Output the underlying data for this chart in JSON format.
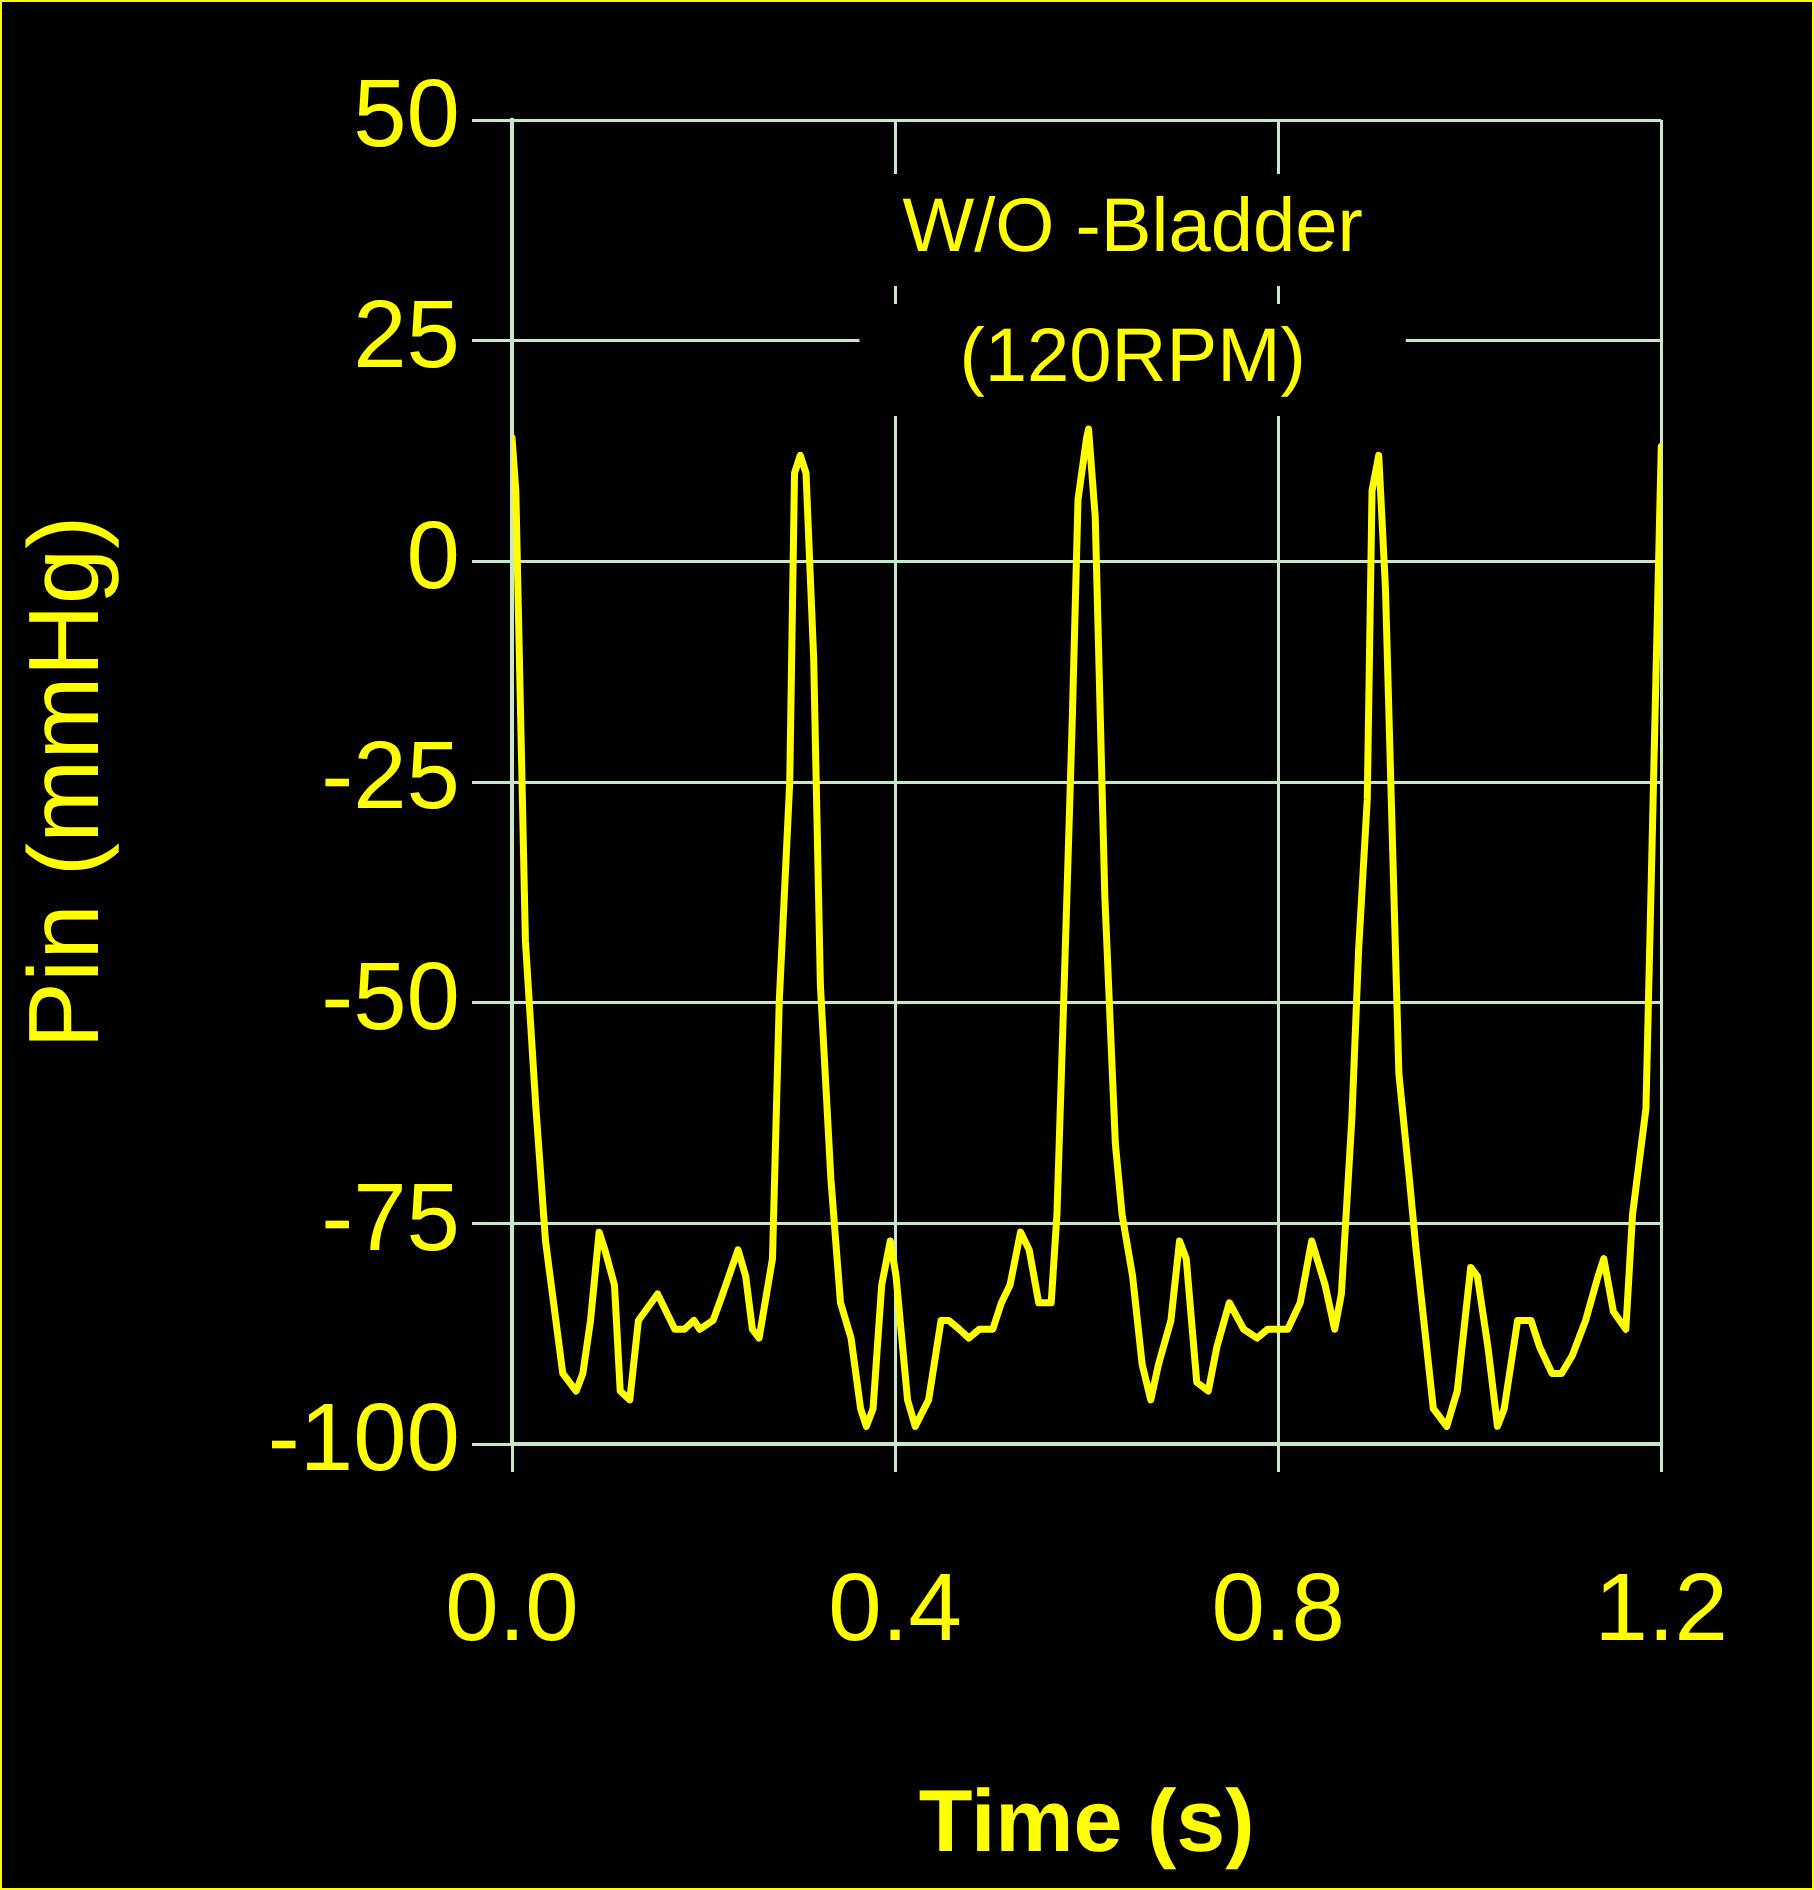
{
  "chart_data": {
    "type": "line",
    "xlabel": "Time (s)",
    "ylabel": "Pin (mmHg)",
    "annotations": [
      "W/O -Bladder",
      "(120RPM)"
    ],
    "xlim": [
      0,
      1.2
    ],
    "xticks": [
      {
        "value": 0,
        "label": "0.0"
      },
      0.4,
      0.8,
      1.2
    ],
    "ylim": [
      -100,
      50
    ],
    "yticks": [
      -100,
      -75,
      -50,
      -25,
      0,
      25,
      50
    ],
    "grid": true,
    "legend": false,
    "marker": "none",
    "line_style": "solid",
    "series": [
      {
        "color": "#ffff00",
        "x": [
          0,
          0.004,
          0.014,
          0.025,
          0.035,
          0.053,
          0.067,
          0.074,
          0.082,
          0.091,
          0.097,
          0.107,
          0.113,
          0.123,
          0.132,
          0.152,
          0.17,
          0.18,
          0.19,
          0.196,
          0.21,
          0.22,
          0.236,
          0.244,
          0.251,
          0.258,
          0.272,
          0.279,
          0.29,
          0.295,
          0.301,
          0.307,
          0.315,
          0.322,
          0.333,
          0.343,
          0.354,
          0.364,
          0.37,
          0.377,
          0.386,
          0.395,
          0.401,
          0.413,
          0.421,
          0.435,
          0.448,
          0.456,
          0.467,
          0.477,
          0.488,
          0.502,
          0.511,
          0.52,
          0.531,
          0.54,
          0.55,
          0.563,
          0.569,
          0.576,
          0.585,
          0.591,
          0.6,
          0.602,
          0.609,
          0.619,
          0.63,
          0.637,
          0.648,
          0.658,
          0.667,
          0.675,
          0.688,
          0.697,
          0.704,
          0.715,
          0.727,
          0.736,
          0.749,
          0.764,
          0.778,
          0.789,
          0.81,
          0.823,
          0.835,
          0.849,
          0.859,
          0.866,
          0.877,
          0.884,
          0.893,
          0.898,
          0.905,
          0.912,
          0.926,
          0.937,
          0.944,
          0.962,
          0.976,
          0.987,
          1.001,
          1.008,
          1.019,
          1.029,
          1.036,
          1.05,
          1.064,
          1.073,
          1.086,
          1.096,
          1.107,
          1.121,
          1.134,
          1.14,
          1.15,
          1.163,
          1.17,
          1.184,
          1.19,
          1.197,
          1.2
        ],
        "values": [
          14,
          8,
          -43,
          -62,
          -77,
          -92,
          -94,
          -92,
          -86,
          -76,
          -78,
          -82,
          -94,
          -95,
          -86,
          -83,
          -87,
          -87,
          -86,
          -87,
          -86,
          -83,
          -78,
          -81,
          -87,
          -88,
          -79,
          -50,
          -25,
          10,
          12,
          10,
          -11,
          -48,
          -70,
          -84,
          -88,
          -96,
          -98,
          -96,
          -82,
          -77,
          -81,
          -95,
          -98,
          -95,
          -86,
          -86,
          -87,
          -88,
          -87,
          -87,
          -84,
          -82,
          -76,
          -78,
          -84,
          -84,
          -74,
          -50,
          -18,
          7,
          14,
          15,
          5,
          -38,
          -66,
          -74,
          -81,
          -91,
          -95,
          -91,
          -86,
          -77,
          -79,
          -93,
          -94,
          -89,
          -84,
          -87,
          -88,
          -87,
          -87,
          -84,
          -77,
          -82,
          -87,
          -83,
          -63,
          -44,
          -27,
          8,
          12,
          -3,
          -58,
          -70,
          -78,
          -96,
          -98,
          -94,
          -80,
          -81,
          -89,
          -98,
          -96,
          -86,
          -86,
          -89,
          -92,
          -92,
          -90,
          -86,
          -81,
          -79,
          -85,
          -87,
          -74,
          -62,
          -34,
          -1,
          13
        ]
      }
    ]
  }
}
